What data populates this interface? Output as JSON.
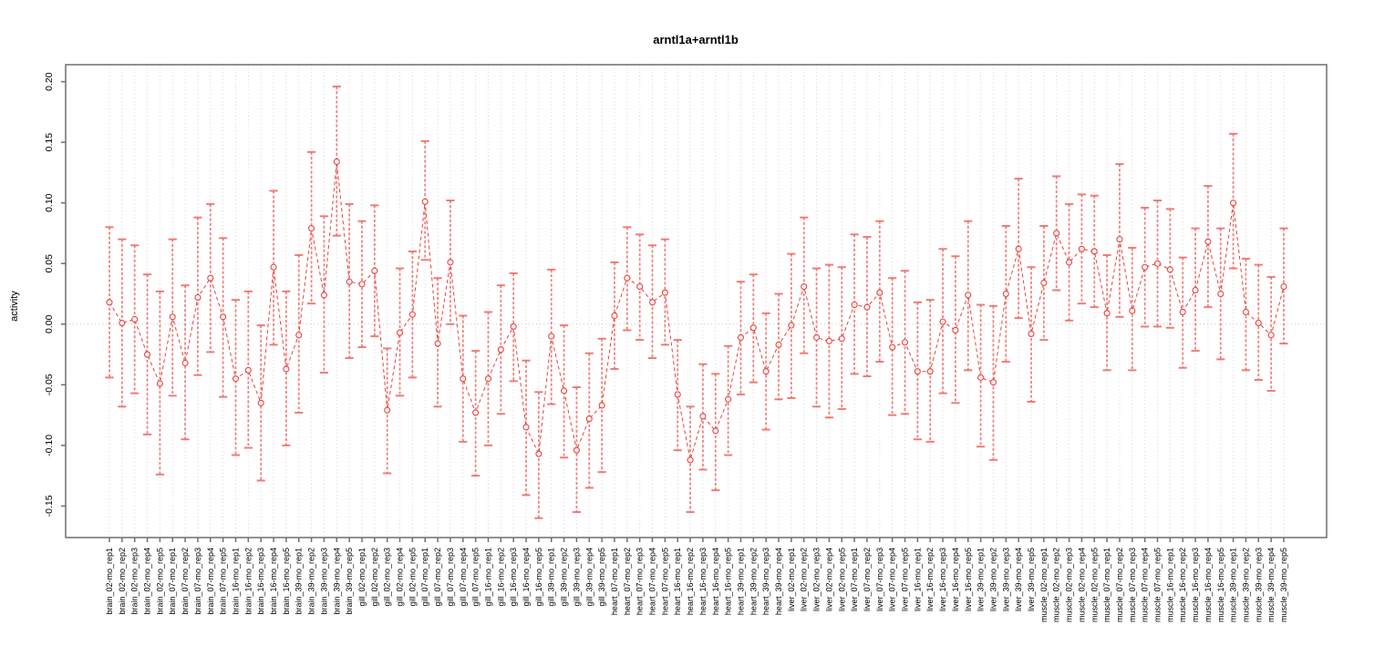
{
  "title": "arntl1a+arntl1b",
  "chart_data": {
    "type": "line",
    "title": "arntl1a+arntl1b",
    "xlabel": "",
    "ylabel": "activity",
    "grid": "vertical-dotted-per-category",
    "legend": "none",
    "marker": "open-circle",
    "line_style": "dashed",
    "error_bars": true,
    "zero_reference_line": 0,
    "ylim": [
      -0.176,
      0.214
    ],
    "ytick_labels": [
      "0.20",
      "0.15",
      "0.10",
      "0.05",
      "0.00",
      "-0.05",
      "-0.10",
      "-0.15"
    ],
    "categories": [
      "brain_02-mo_rep1",
      "brain_02-mo_rep2",
      "brain_02-mo_rep3",
      "brain_02-mo_rep4",
      "brain_02-mo_rep5",
      "brain_07-mo_rep1",
      "brain_07-mo_rep2",
      "brain_07-mo_rep3",
      "brain_07-mo_rep4",
      "brain_07-mo_rep5",
      "brain_16-mo_rep1",
      "brain_16-mo_rep2",
      "brain_16-mo_rep3",
      "brain_16-mo_rep4",
      "brain_16-mo_rep5",
      "brain_39-mo_rep1",
      "brain_39-mo_rep2",
      "brain_39-mo_rep3",
      "brain_39-mo_rep4",
      "brain_39-mo_rep5",
      "gill_02-mo_rep1",
      "gill_02-mo_rep2",
      "gill_02-mo_rep3",
      "gill_02-mo_rep4",
      "gill_02-mo_rep5",
      "gill_07-mo_rep1",
      "gill_07-mo_rep2",
      "gill_07-mo_rep3",
      "gill_07-mo_rep4",
      "gill_07-mo_rep5",
      "gill_16-mo_rep1",
      "gill_16-mo_rep2",
      "gill_16-mo_rep3",
      "gill_16-mo_rep4",
      "gill_16-mo_rep5",
      "gill_39-mo_rep1",
      "gill_39-mo_rep2",
      "gill_39-mo_rep3",
      "gill_39-mo_rep4",
      "gill_39-mo_rep5",
      "heart_07-mo_rep1",
      "heart_07-mo_rep2",
      "heart_07-mo_rep3",
      "heart_07-mo_rep4",
      "heart_07-mo_rep5",
      "heart_16-mo_rep1",
      "heart_16-mo_rep2",
      "heart_16-mo_rep3",
      "heart_16-mo_rep4",
      "heart_16-mo_rep5",
      "heart_39-mo_rep1",
      "heart_39-mo_rep2",
      "heart_39-mo_rep3",
      "heart_39-mo_rep4",
      "liver_02-mo_rep1",
      "liver_02-mo_rep2",
      "liver_02-mo_rep3",
      "liver_02-mo_rep4",
      "liver_02-mo_rep5",
      "liver_07-mo_rep1",
      "liver_07-mo_rep2",
      "liver_07-mo_rep3",
      "liver_07-mo_rep4",
      "liver_07-mo_rep5",
      "liver_16-mo_rep1",
      "liver_16-mo_rep2",
      "liver_16-mo_rep3",
      "liver_16-mo_rep4",
      "liver_16-mo_rep5",
      "liver_39-mo_rep1",
      "liver_39-mo_rep2",
      "liver_39-mo_rep3",
      "liver_39-mo_rep4",
      "liver_39-mo_rep5",
      "muscle_02-mo_rep1",
      "muscle_02-mo_rep2",
      "muscle_02-mo_rep3",
      "muscle_02-mo_rep4",
      "muscle_02-mo_rep5",
      "muscle_07-mo_rep1",
      "muscle_07-mo_rep2",
      "muscle_07-mo_rep3",
      "muscle_07-mo_rep4",
      "muscle_07-mo_rep5",
      "muscle_16-mo_rep1",
      "muscle_16-mo_rep2",
      "muscle_16-mo_rep3",
      "muscle_16-mo_rep4",
      "muscle_16-mo_rep5",
      "muscle_39-mo_rep1",
      "muscle_39-mo_rep2",
      "muscle_39-mo_rep3",
      "muscle_39-mo_rep4",
      "muscle_39-mo_rep5"
    ],
    "series": [
      {
        "name": "activity",
        "values": [
          0.018,
          0.001,
          0.004,
          -0.025,
          -0.049,
          0.006,
          -0.032,
          0.022,
          0.038,
          0.006,
          -0.045,
          -0.038,
          -0.065,
          0.047,
          -0.037,
          -0.009,
          0.079,
          0.024,
          0.134,
          0.035,
          0.033,
          0.044,
          -0.071,
          -0.007,
          0.008,
          0.101,
          -0.016,
          0.051,
          -0.045,
          -0.073,
          -0.045,
          -0.021,
          -0.002,
          -0.085,
          -0.107,
          -0.01,
          -0.055,
          -0.104,
          -0.078,
          -0.067,
          0.007,
          0.038,
          0.031,
          0.018,
          0.026,
          -0.058,
          -0.112,
          -0.076,
          -0.088,
          -0.062,
          -0.011,
          -0.003,
          -0.039,
          -0.017,
          -0.001,
          0.031,
          -0.011,
          -0.014,
          -0.012,
          0.016,
          0.014,
          0.026,
          -0.019,
          -0.015,
          -0.039,
          -0.039,
          0.002,
          -0.005,
          0.024,
          -0.044,
          -0.048,
          0.025,
          0.062,
          -0.008,
          0.034,
          0.075,
          0.051,
          0.062,
          0.06,
          0.009,
          0.07,
          0.011,
          0.047,
          0.05,
          0.045,
          0.01,
          0.028,
          0.068,
          0.025,
          0.1,
          0.01,
          0.001,
          -0.009,
          0.031
        ],
        "err_low": [
          -0.044,
          -0.068,
          -0.057,
          -0.091,
          -0.124,
          -0.059,
          -0.095,
          -0.042,
          -0.023,
          -0.06,
          -0.108,
          -0.102,
          -0.129,
          -0.017,
          -0.1,
          -0.073,
          0.017,
          -0.04,
          0.073,
          -0.028,
          -0.019,
          -0.01,
          -0.123,
          -0.059,
          -0.044,
          0.053,
          -0.068,
          0.0,
          -0.097,
          -0.125,
          -0.1,
          -0.074,
          -0.047,
          -0.141,
          -0.16,
          -0.066,
          -0.11,
          -0.155,
          -0.135,
          -0.122,
          -0.037,
          -0.005,
          -0.013,
          -0.028,
          -0.017,
          -0.104,
          -0.155,
          -0.12,
          -0.137,
          -0.108,
          -0.058,
          -0.048,
          -0.087,
          -0.062,
          -0.061,
          -0.024,
          -0.068,
          -0.077,
          -0.07,
          -0.041,
          -0.043,
          -0.031,
          -0.075,
          -0.074,
          -0.095,
          -0.097,
          -0.057,
          -0.065,
          -0.038,
          -0.101,
          -0.112,
          -0.031,
          0.005,
          -0.064,
          -0.013,
          0.028,
          0.003,
          0.017,
          0.014,
          -0.038,
          0.006,
          -0.038,
          -0.002,
          -0.002,
          -0.003,
          -0.036,
          -0.022,
          0.014,
          -0.029,
          0.046,
          -0.038,
          -0.046,
          -0.055,
          -0.016
        ],
        "err_high": [
          0.08,
          0.07,
          0.065,
          0.041,
          0.027,
          0.07,
          0.032,
          0.088,
          0.099,
          0.071,
          0.02,
          0.027,
          -0.001,
          0.11,
          0.027,
          0.057,
          0.142,
          0.089,
          0.196,
          0.099,
          0.085,
          0.098,
          -0.02,
          0.046,
          0.06,
          0.151,
          0.038,
          0.102,
          0.007,
          -0.022,
          0.01,
          0.032,
          0.042,
          -0.03,
          -0.056,
          0.045,
          -0.001,
          -0.052,
          -0.024,
          -0.012,
          0.051,
          0.08,
          0.074,
          0.065,
          0.07,
          -0.013,
          -0.068,
          -0.033,
          -0.041,
          -0.018,
          0.035,
          0.041,
          0.009,
          0.025,
          0.058,
          0.088,
          0.046,
          0.049,
          0.047,
          0.074,
          0.072,
          0.085,
          0.038,
          0.044,
          0.018,
          0.02,
          0.062,
          0.056,
          0.085,
          0.016,
          0.015,
          0.081,
          0.12,
          0.047,
          0.081,
          0.122,
          0.099,
          0.107,
          0.106,
          0.057,
          0.132,
          0.063,
          0.096,
          0.102,
          0.095,
          0.055,
          0.079,
          0.114,
          0.079,
          0.157,
          0.054,
          0.049,
          0.039,
          0.079
        ]
      }
    ],
    "colors": {
      "series": "#e8433e",
      "errorbar": "#ef6661",
      "grid": "#dadada",
      "zero_line": "#c9c9c9",
      "box": "#6e6e6e",
      "text": "#000000"
    }
  }
}
